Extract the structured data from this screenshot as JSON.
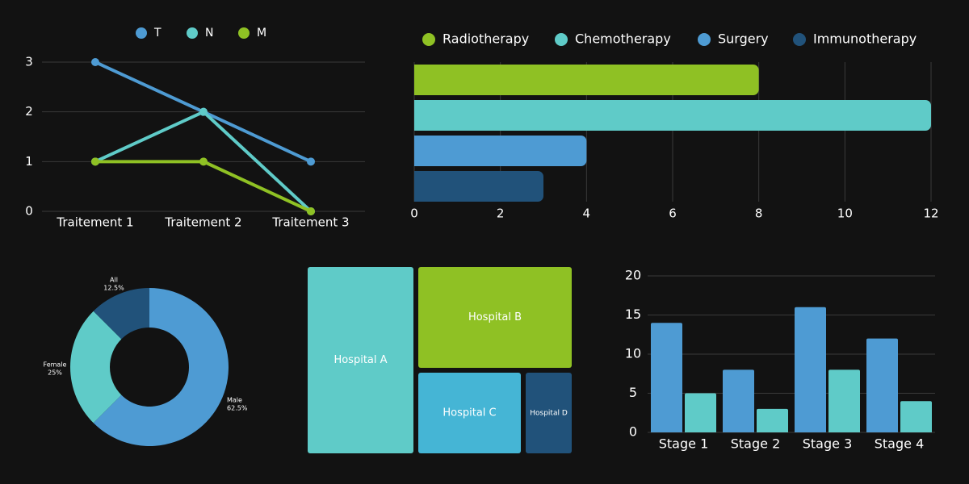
{
  "colors": {
    "background": "#121212",
    "grid": "#3a3a3a",
    "text": "#ffffff",
    "blue": "#4e9bd3",
    "teal": "#5fcbc8",
    "green": "#8fc124",
    "navy": "#21527a",
    "cyan": "#45b5d5"
  },
  "chart_data": [
    {
      "id": "line",
      "type": "line",
      "categories": [
        "Traitement 1",
        "Traitement 2",
        "Traitement 3"
      ],
      "series": [
        {
          "name": "T",
          "values": [
            3,
            2,
            1
          ],
          "color": "#4e9bd3"
        },
        {
          "name": "N",
          "values": [
            1,
            2,
            0
          ],
          "color": "#5fcbc8"
        },
        {
          "name": "M",
          "values": [
            1,
            1,
            0
          ],
          "color": "#8fc124"
        }
      ],
      "ylim": [
        0,
        3
      ],
      "yticks": [
        "0",
        "1",
        "2",
        "3"
      ],
      "grid": true,
      "legend": "top"
    },
    {
      "id": "hbar",
      "type": "bar",
      "orientation": "horizontal",
      "series": [
        {
          "name": "Radiotherapy",
          "value": 8,
          "color": "#8fc124"
        },
        {
          "name": "Chemotherapy",
          "value": 12,
          "color": "#5fcbc8"
        },
        {
          "name": "Surgery",
          "value": 4,
          "color": "#4e9bd3"
        },
        {
          "name": "Immunotherapy",
          "value": 3,
          "color": "#21527a"
        }
      ],
      "xlim": [
        0,
        12
      ],
      "xticks": [
        "0",
        "2",
        "4",
        "6",
        "8",
        "10",
        "12"
      ],
      "grid": true,
      "legend": "top"
    },
    {
      "id": "donut",
      "type": "pie",
      "hole": true,
      "slices": [
        {
          "label": "Male",
          "percent_label": "62.5%",
          "value": 62.5,
          "color": "#4e9bd3"
        },
        {
          "label": "Female",
          "percent_label": "25%",
          "value": 25,
          "color": "#5fcbc8"
        },
        {
          "label": "All",
          "percent_label": "12.5%",
          "value": 12.5,
          "color": "#21527a"
        }
      ]
    },
    {
      "id": "treemap",
      "type": "treemap",
      "items": [
        {
          "label": "Hospital A",
          "color": "#5fcbc8"
        },
        {
          "label": "Hospital B",
          "color": "#8fc124"
        },
        {
          "label": "Hospital C",
          "color": "#45b5d5"
        },
        {
          "label": "Hospital D",
          "color": "#21527a"
        }
      ]
    },
    {
      "id": "gbar",
      "type": "bar",
      "categories": [
        "Stage 1",
        "Stage 2",
        "Stage 3",
        "Stage 4"
      ],
      "series": [
        {
          "values": [
            14,
            8,
            16,
            12
          ],
          "color": "#4e9bd3"
        },
        {
          "values": [
            5,
            3,
            8,
            4
          ],
          "color": "#5fcbc8"
        }
      ],
      "ylim": [
        0,
        20
      ],
      "yticks": [
        "0",
        "5",
        "10",
        "15",
        "20"
      ],
      "grid": true
    }
  ]
}
